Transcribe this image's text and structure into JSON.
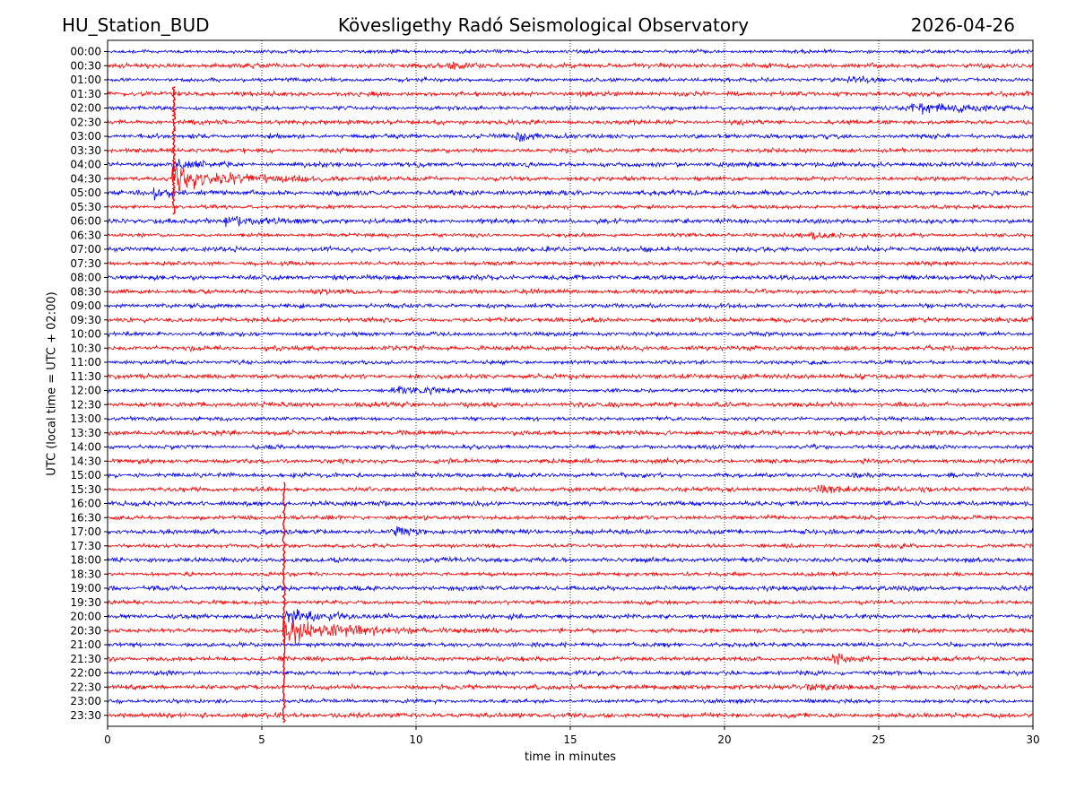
{
  "header": {
    "station": "HU_Station_BUD",
    "title": "Kövesligethy Radó Seismological Observatory",
    "date": "2026-04-26"
  },
  "chart_data": {
    "type": "line",
    "subtype": "helicorder",
    "title": "Kövesligethy Radó Seismological Observatory",
    "xlabel": "time in minutes",
    "ylabel": "UTC (local time = UTC + 02:00)",
    "xlim": [
      0,
      30
    ],
    "xticks": [
      0,
      5,
      10,
      15,
      20,
      25,
      30
    ],
    "grid": "vertical dotted lines at 5, 10, 15, 20, 25",
    "trace_colors": [
      "#0000ff",
      "#ff0000"
    ],
    "rows": [
      "00:00",
      "00:30",
      "01:00",
      "01:30",
      "02:00",
      "02:30",
      "03:00",
      "03:30",
      "04:00",
      "04:30",
      "05:00",
      "05:30",
      "06:00",
      "06:30",
      "07:00",
      "07:30",
      "08:00",
      "08:30",
      "09:00",
      "09:30",
      "10:00",
      "10:30",
      "11:00",
      "11:30",
      "12:00",
      "12:30",
      "13:00",
      "13:30",
      "14:00",
      "14:30",
      "15:00",
      "15:30",
      "16:00",
      "16:30",
      "17:00",
      "17:30",
      "18:00",
      "18:30",
      "19:00",
      "19:30",
      "20:00",
      "20:30",
      "21:00",
      "21:30",
      "22:00",
      "22:30",
      "23:00",
      "23:30"
    ],
    "events": [
      {
        "row": "00:30",
        "start_min": 11.0,
        "duration_min": 1.2,
        "amplitude": 1.6,
        "decay": 0.6
      },
      {
        "row": "01:00",
        "start_min": 24.0,
        "duration_min": 1.5,
        "amplitude": 1.3,
        "decay": 0.8
      },
      {
        "row": "02:00",
        "start_min": 26.0,
        "duration_min": 3.0,
        "amplitude": 2.6,
        "decay": 1.5
      },
      {
        "row": "03:00",
        "start_min": 13.2,
        "duration_min": 1.3,
        "amplitude": 2.5,
        "decay": 0.6
      },
      {
        "row": "04:00",
        "start_min": 2.1,
        "duration_min": 1.0,
        "amplitude": 3.0,
        "decay": 0.5
      },
      {
        "row": "04:30",
        "start_min": 2.1,
        "duration_min": 6.0,
        "amplitude": 4.5,
        "decay": 2.0
      },
      {
        "row": "05:00",
        "start_min": 1.5,
        "duration_min": 1.2,
        "amplitude": 2.2,
        "decay": 0.6
      },
      {
        "row": "06:00",
        "start_min": 3.8,
        "duration_min": 1.8,
        "amplitude": 1.8,
        "decay": 1.0
      },
      {
        "row": "06:30",
        "start_min": 22.8,
        "duration_min": 1.6,
        "amplitude": 1.6,
        "decay": 0.8
      },
      {
        "row": "12:00",
        "start_min": 9.2,
        "duration_min": 2.5,
        "amplitude": 1.5,
        "decay": 1.5
      },
      {
        "row": "15:30",
        "start_min": 23.0,
        "duration_min": 2.0,
        "amplitude": 1.3,
        "decay": 1.2
      },
      {
        "row": "17:00",
        "start_min": 9.3,
        "duration_min": 1.0,
        "amplitude": 1.6,
        "decay": 0.6
      },
      {
        "row": "20:00",
        "start_min": 5.7,
        "duration_min": 1.8,
        "amplitude": 3.5,
        "decay": 1.0
      },
      {
        "row": "20:30",
        "start_min": 5.7,
        "duration_min": 4.5,
        "amplitude": 5.0,
        "decay": 1.8
      },
      {
        "row": "21:30",
        "start_min": 23.5,
        "duration_min": 1.2,
        "amplitude": 1.5,
        "decay": 0.6
      },
      {
        "row": "22:30",
        "start_min": 22.5,
        "duration_min": 2.0,
        "amplitude": 1.3,
        "decay": 1.2
      }
    ],
    "spikes": [
      {
        "row": "04:30",
        "minute": 2.15,
        "extent_rows": [
          3,
          11
        ]
      },
      {
        "row": "20:30",
        "minute": 5.72,
        "extent_rows": [
          31,
          47
        ]
      }
    ]
  }
}
